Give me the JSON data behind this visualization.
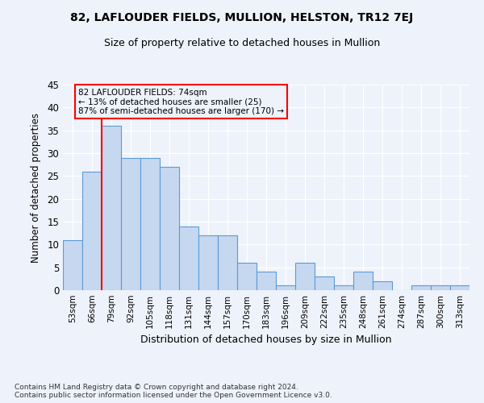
{
  "title1": "82, LAFLOUDER FIELDS, MULLION, HELSTON, TR12 7EJ",
  "title2": "Size of property relative to detached houses in Mullion",
  "xlabel": "Distribution of detached houses by size in Mullion",
  "ylabel": "Number of detached properties",
  "categories": [
    "53sqm",
    "66sqm",
    "79sqm",
    "92sqm",
    "105sqm",
    "118sqm",
    "131sqm",
    "144sqm",
    "157sqm",
    "170sqm",
    "183sqm",
    "196sqm",
    "209sqm",
    "222sqm",
    "235sqm",
    "248sqm",
    "261sqm",
    "274sqm",
    "287sqm",
    "300sqm",
    "313sqm"
  ],
  "values": [
    11,
    26,
    36,
    29,
    29,
    27,
    14,
    12,
    12,
    6,
    4,
    1,
    6,
    3,
    1,
    4,
    2,
    0,
    1,
    1,
    1
  ],
  "bar_color": "#c5d8f0",
  "bar_edge_color": "#5b9bd5",
  "red_line_x": 1.5,
  "annotation_text": "82 LAFLOUDER FIELDS: 74sqm\n← 13% of detached houses are smaller (25)\n87% of semi-detached houses are larger (170) →",
  "ylim": [
    0,
    45
  ],
  "yticks": [
    0,
    5,
    10,
    15,
    20,
    25,
    30,
    35,
    40,
    45
  ],
  "footnote": "Contains HM Land Registry data © Crown copyright and database right 2024.\nContains public sector information licensed under the Open Government Licence v3.0.",
  "background_color": "#eef2fa",
  "grid_color": "#ffffff"
}
